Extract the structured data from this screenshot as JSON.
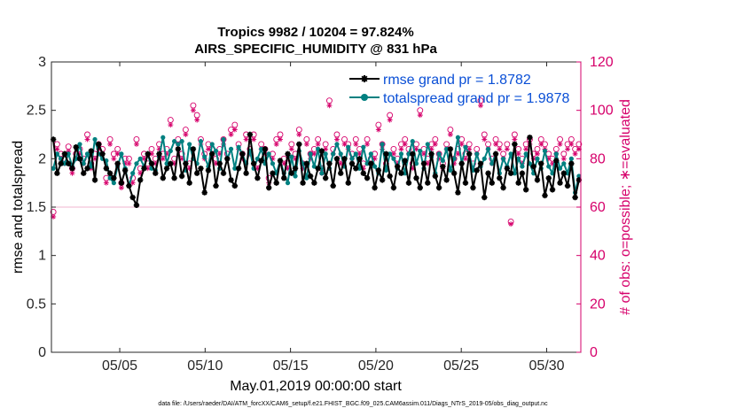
{
  "chart_data": {
    "type": "line",
    "title": [
      "Tropics 9982 / 10204 = 97.824%",
      "AIRS_SPECIFIC_HUMIDITY @ 831 hPa"
    ],
    "ylabel": "rmse and totalspread",
    "ylabel_right": "# of obs: o=possible; ∗=evaluated",
    "xlabel": "May.01,2019 00:00:00 start",
    "x_range_days": [
      1,
      32
    ],
    "ylim": [
      0,
      3
    ],
    "ylim_right": [
      0,
      120
    ],
    "yticks": [
      "0",
      "0.5",
      "1",
      "1.5",
      "2",
      "2.5",
      "3"
    ],
    "yticks_right": [
      "0",
      "20",
      "40",
      "60",
      "80",
      "100",
      "120"
    ],
    "xticks": [
      {
        "day": 5,
        "label": "05/05"
      },
      {
        "day": 10,
        "label": "05/10"
      },
      {
        "day": 15,
        "label": "05/15"
      },
      {
        "day": 20,
        "label": "05/20"
      },
      {
        "day": 25,
        "label": "05/25"
      },
      {
        "day": 30,
        "label": "05/30"
      }
    ],
    "series": [
      {
        "name": "rmse grand pr = 1.8782",
        "color": "#000000",
        "marker": "asterisk",
        "values": [
          2.2,
          1.85,
          1.95,
          2.05,
          1.95,
          1.9,
          2.12,
          2.0,
          1.85,
          1.9,
          2.08,
          1.78,
          2.15,
          2.05,
          1.9,
          1.85,
          1.8,
          1.95,
          1.75,
          1.88,
          1.72,
          1.6,
          1.52,
          1.78,
          1.9,
          2.05,
          1.95,
          1.85,
          2.05,
          1.8,
          1.9,
          1.95,
          1.8,
          2.1,
          1.82,
          1.95,
          1.75,
          2.1,
          1.85,
          1.9,
          1.65,
          1.88,
          2.05,
          1.72,
          1.95,
          1.85,
          2.0,
          1.78,
          1.72,
          1.9,
          2.05,
          1.85,
          2.25,
          1.95,
          1.8,
          1.98,
          2.1,
          1.7,
          1.85,
          1.75,
          1.98,
          1.8,
          2.05,
          1.85,
          1.9,
          2.15,
          1.75,
          1.95,
          1.82,
          1.75,
          1.9,
          2.08,
          1.8,
          1.95,
          1.72,
          2.0,
          1.85,
          2.0,
          1.75,
          1.95,
          1.9,
          2.0,
          1.85,
          1.8,
          1.95,
          1.7,
          1.88,
          1.78,
          2.05,
          1.82,
          1.7,
          1.92,
          1.85,
          1.98,
          1.75,
          2.05,
          1.8,
          1.7,
          1.95,
          1.75,
          2.05,
          1.82,
          1.7,
          1.92,
          1.78,
          2.1,
          1.85,
          1.65,
          1.95,
          1.75,
          2.05,
          1.7,
          1.88,
          1.95,
          1.6,
          1.85,
          1.75,
          2.05,
          1.8,
          1.7,
          1.9,
          1.85,
          2.15,
          1.75,
          1.85,
          1.68,
          2.22,
          1.92,
          1.78,
          1.95,
          1.62,
          1.8,
          1.68,
          1.98,
          1.75,
          1.85,
          1.72,
          1.95,
          1.6,
          1.78
        ]
      },
      {
        "name": "totalspread grand pr = 1.9878",
        "color": "#008080",
        "marker": "dot",
        "values": [
          1.9,
          2.05,
          2.0,
          1.95,
          2.05,
          1.92,
          2.0,
          2.15,
          1.95,
          2.05,
          1.92,
          2.2,
          2.05,
          2.0,
          1.98,
          1.8,
          1.75,
          1.92,
          2.05,
          1.9,
          1.72,
          1.85,
          1.95,
          2.0,
          1.92,
          2.05,
          1.9,
          1.88,
          2.02,
          2.22,
          1.95,
          2.08,
          2.18,
          2.15,
          2.18,
          1.88,
          2.15,
          2.0,
          1.95,
          2.18,
          2.02,
          1.92,
          2.15,
          2.08,
          1.9,
          2.2,
          2.0,
          2.1,
          1.9,
          2.12,
          2.05,
          1.95,
          2.08,
          1.9,
          2.0,
          2.1,
          1.95,
          2.05,
          1.95,
          1.85,
          1.98,
          1.85,
          1.75,
          2.02,
          1.82,
          2.08,
          1.95,
          1.8,
          2.05,
          1.92,
          2.1,
          1.85,
          2.05,
          1.9,
          2.05,
          2.15,
          2.05,
          1.92,
          2.12,
          2.0,
          2.05,
          1.9,
          2.12,
          1.95,
          2.05,
          1.92,
          1.85,
          2.15,
          1.88,
          2.05,
          2.0,
          1.9,
          2.05,
          1.85,
          2.05,
          2.18,
          1.95,
          2.08,
          1.9,
          2.15,
          2.02,
          1.85,
          2.05,
          1.98,
          2.1,
          1.88,
          2.0,
          2.22,
          1.95,
          2.12,
          2.05,
          1.88,
          2.05,
          1.92,
          2.0,
          2.1,
          1.95,
          2.05,
          1.85,
          2.0,
          1.92,
          2.05,
          1.85,
          2.0,
          1.92,
          2.05,
          1.95,
          1.85,
          2.0,
          1.9,
          2.08,
          1.92,
          1.85,
          2.05,
          1.9,
          1.95,
          1.85,
          2.0,
          1.65,
          1.82
        ]
      },
      {
        "name": "possible",
        "axis": "right",
        "color": "#d6006b",
        "marker": "circle",
        "values": [
          58,
          86,
          82,
          80,
          85,
          76,
          82,
          84,
          80,
          90,
          78,
          82,
          86,
          84,
          72,
          88,
          82,
          84,
          70,
          80,
          80,
          72,
          88,
          76,
          82,
          78,
          84,
          80,
          86,
          82,
          84,
          96,
          80,
          88,
          82,
          92,
          78,
          102,
          98,
          88,
          82,
          86,
          84,
          80,
          84,
          88,
          82,
          92,
          94,
          86,
          82,
          90,
          84,
          90,
          78,
          86,
          84,
          72,
          82,
          88,
          90,
          80,
          78,
          86,
          82,
          92,
          78,
          88,
          82,
          84,
          88,
          76,
          86,
          104,
          84,
          90,
          80,
          88,
          86,
          82,
          88,
          84,
          78,
          88,
          80,
          82,
          94,
          86,
          78,
          98,
          84,
          80,
          86,
          88,
          84,
          78,
          86,
          100,
          84,
          80,
          86,
          88,
          82,
          78,
          86,
          92,
          80,
          84,
          88,
          82,
          86,
          78,
          84,
          104,
          90,
          86,
          80,
          88,
          86,
          82,
          86,
          54,
          90,
          84,
          80,
          86,
          88,
          82,
          84,
          88,
          86,
          82,
          80,
          84,
          88,
          82,
          86,
          88,
          84,
          86
        ]
      },
      {
        "name": "evaluated",
        "axis": "right",
        "color": "#d6006b",
        "marker": "asterisk",
        "values": [
          56,
          84,
          80,
          78,
          83,
          74,
          80,
          82,
          78,
          88,
          76,
          80,
          84,
          82,
          70,
          86,
          80,
          82,
          68,
          78,
          78,
          70,
          86,
          74,
          80,
          76,
          82,
          78,
          84,
          80,
          82,
          94,
          78,
          86,
          80,
          90,
          76,
          100,
          96,
          86,
          80,
          84,
          82,
          78,
          82,
          86,
          80,
          90,
          92,
          84,
          80,
          88,
          82,
          88,
          76,
          84,
          82,
          70,
          80,
          86,
          88,
          78,
          76,
          84,
          80,
          90,
          76,
          86,
          80,
          82,
          86,
          74,
          84,
          102,
          82,
          88,
          78,
          86,
          84,
          80,
          86,
          82,
          76,
          86,
          78,
          80,
          92,
          84,
          76,
          96,
          82,
          78,
          84,
          86,
          82,
          76,
          84,
          98,
          82,
          78,
          84,
          86,
          80,
          76,
          84,
          90,
          78,
          82,
          86,
          80,
          84,
          76,
          82,
          102,
          88,
          84,
          78,
          86,
          84,
          80,
          84,
          53,
          88,
          82,
          78,
          84,
          86,
          80,
          82,
          86,
          84,
          80,
          78,
          82,
          86,
          80,
          84,
          86,
          82,
          84
        ]
      }
    ]
  },
  "footer": "data file: /Users/raeder/DAI/ATM_forcXX/CAM6_setup/f.e21.FHIST_BGC.f09_025.CAM6assim.011/Diags_NTrS_2019-05/obs_diag_output.nc"
}
